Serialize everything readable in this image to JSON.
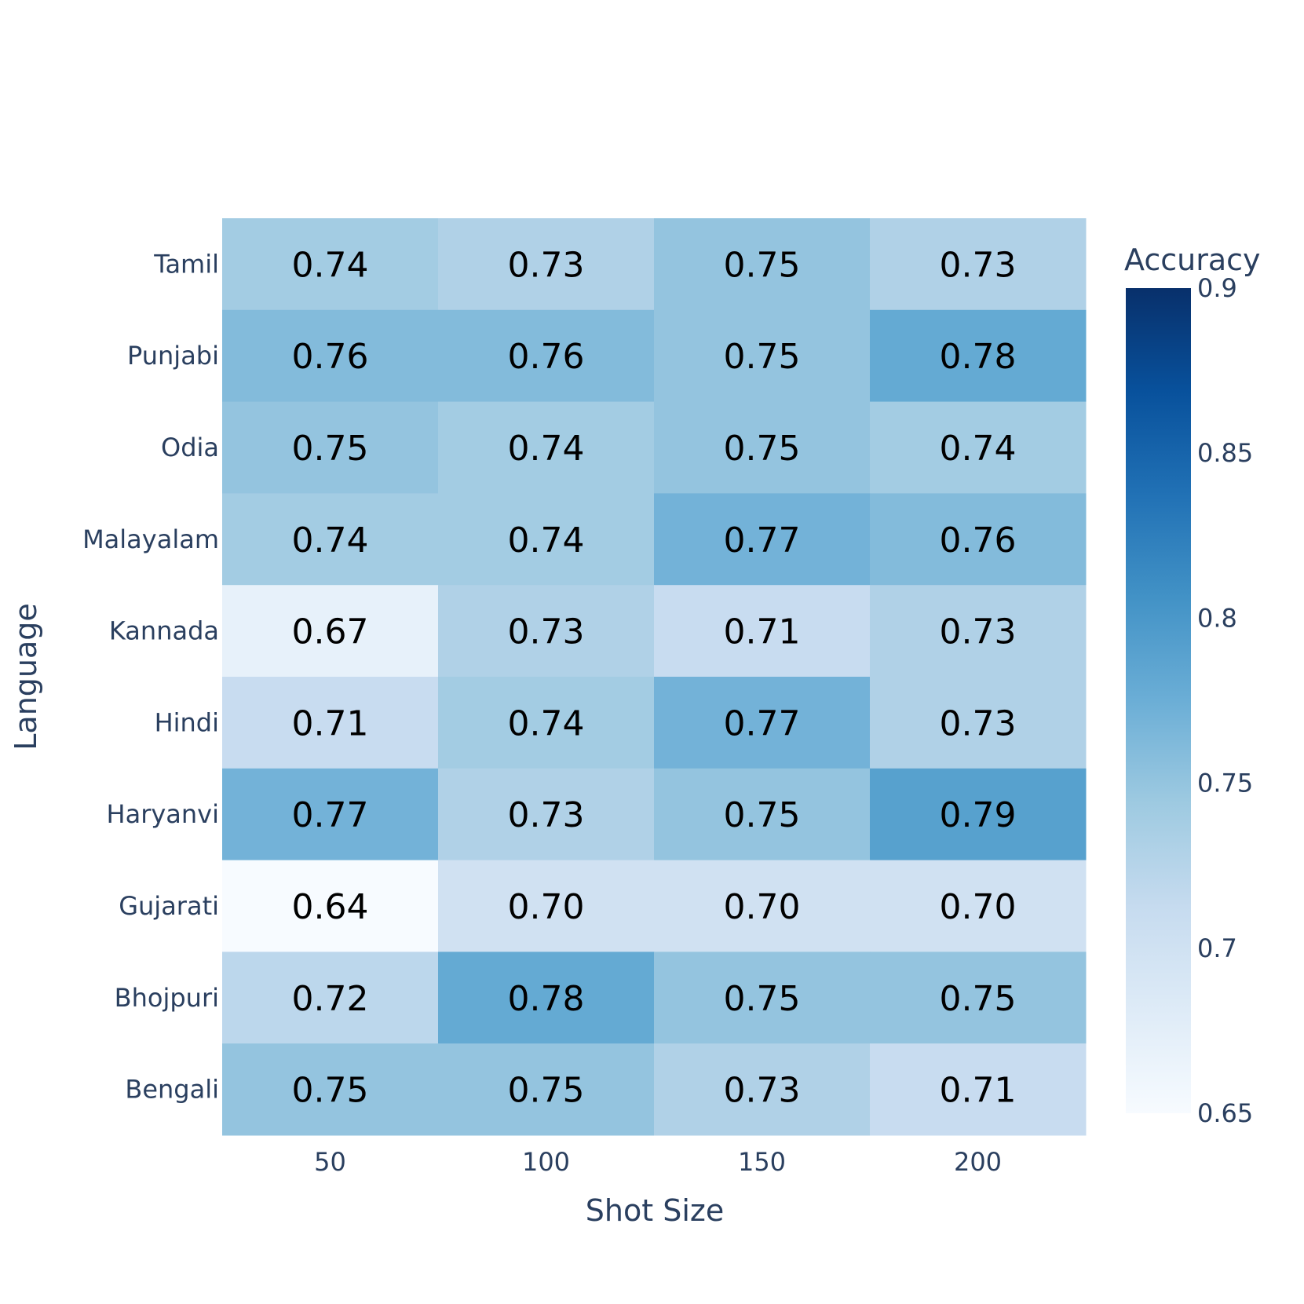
{
  "chart_data": {
    "type": "heatmap",
    "xlabel": "Shot Size",
    "ylabel": "Language",
    "x": [
      "50",
      "100",
      "150",
      "200"
    ],
    "y": [
      "Tamil",
      "Punjabi",
      "Odia",
      "Malayalam",
      "Kannada",
      "Hindi",
      "Haryanvi",
      "Gujarati",
      "Bhojpuri",
      "Bengali"
    ],
    "values": [
      [
        0.74,
        0.73,
        0.75,
        0.73
      ],
      [
        0.76,
        0.76,
        0.75,
        0.78
      ],
      [
        0.75,
        0.74,
        0.75,
        0.74
      ],
      [
        0.74,
        0.74,
        0.77,
        0.76
      ],
      [
        0.67,
        0.73,
        0.71,
        0.73
      ],
      [
        0.71,
        0.74,
        0.77,
        0.73
      ],
      [
        0.77,
        0.73,
        0.75,
        0.79
      ],
      [
        0.64,
        0.7,
        0.7,
        0.7
      ],
      [
        0.72,
        0.78,
        0.75,
        0.75
      ],
      [
        0.75,
        0.75,
        0.73,
        0.71
      ]
    ],
    "value_format": 2,
    "colorbar": {
      "title": "Accuracy",
      "range": [
        0.65,
        0.9
      ],
      "ticks": [
        "0.65",
        "0.7",
        "0.75",
        "0.8",
        "0.85",
        "0.9"
      ],
      "colorscale": "Blues"
    },
    "grid": false
  },
  "colors": {
    "text": "#2a3f5f",
    "cell_text": "#000000",
    "background": "#ffffff",
    "scale": [
      "#f7fbff",
      "#deebf7",
      "#c6dbef",
      "#9ecae1",
      "#6baed6",
      "#4292c6",
      "#2171b5",
      "#08519c",
      "#08306b"
    ]
  }
}
